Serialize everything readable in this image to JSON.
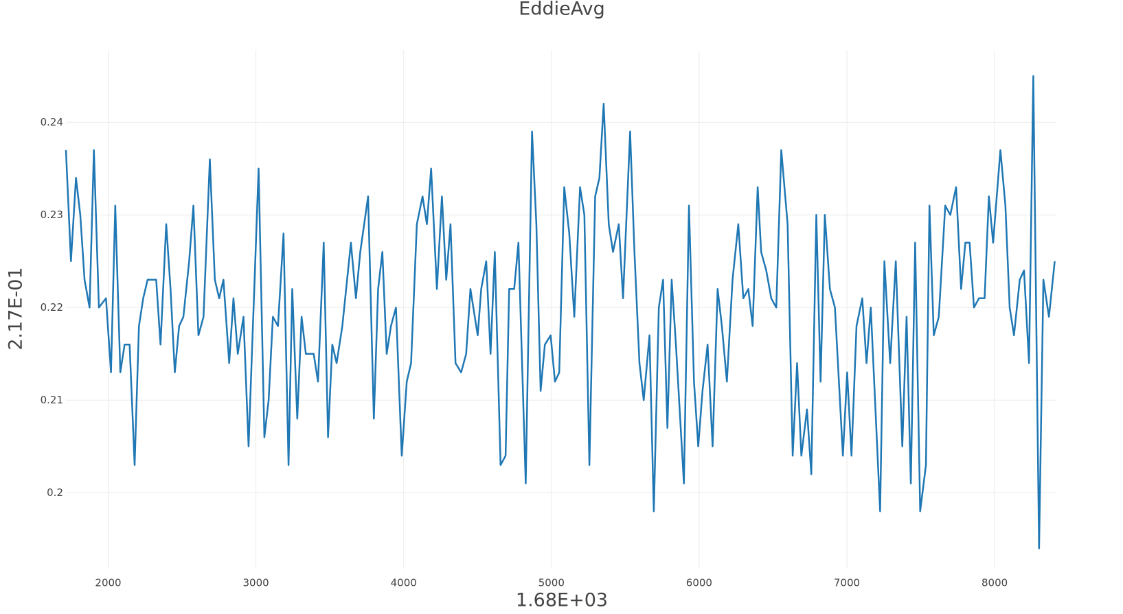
{
  "chart_data": {
    "type": "line",
    "title": "EddieAvg",
    "x_label": "1.68E+03",
    "y_label": "2.17E-01",
    "color": "#1f77b4",
    "grid": true,
    "xlim": [
      1714,
      8418
    ],
    "ylim": [
      0.1918,
      0.2478
    ],
    "xticks": [
      2000,
      3000,
      4000,
      5000,
      6000,
      7000,
      8000
    ],
    "yticks": [
      0.2,
      0.21,
      0.22,
      0.23,
      0.24
    ],
    "x": [
      1714,
      1748,
      1782,
      1811,
      1840,
      1874,
      1903,
      1937,
      1985,
      2019,
      2048,
      2082,
      2111,
      2145,
      2179,
      2208,
      2237,
      2267,
      2296,
      2325,
      2354,
      2393,
      2422,
      2451,
      2480,
      2509,
      2548,
      2577,
      2611,
      2645,
      2688,
      2722,
      2751,
      2780,
      2819,
      2848,
      2877,
      2916,
      2950,
      3018,
      3057,
      3086,
      3115,
      3149,
      3187,
      3221,
      3246,
      3280,
      3309,
      3338,
      3362,
      3391,
      3420,
      3459,
      3488,
      3517,
      3546,
      3585,
      3643,
      3677,
      3706,
      3759,
      3798,
      3827,
      3856,
      3885,
      3914,
      3948,
      3987,
      4021,
      4050,
      4089,
      4128,
      4157,
      4186,
      4225,
      4259,
      4288,
      4317,
      4351,
      4389,
      4423,
      4452,
      4501,
      4525,
      4559,
      4588,
      4617,
      4656,
      4690,
      4714,
      4748,
      4777,
      4826,
      4869,
      4898,
      4927,
      4956,
      4995,
      5024,
      5053,
      5087,
      5121,
      5155,
      5194,
      5223,
      5257,
      5296,
      5325,
      5354,
      5388,
      5417,
      5456,
      5485,
      5533,
      5562,
      5596,
      5625,
      5664,
      5693,
      5727,
      5756,
      5785,
      5814,
      5843,
      5897,
      5931,
      5965,
      5994,
      6023,
      6057,
      6091,
      6125,
      6154,
      6188,
      6226,
      6265,
      6299,
      6333,
      6362,
      6396,
      6420,
      6454,
      6488,
      6522,
      6556,
      6599,
      6633,
      6663,
      6692,
      6730,
      6759,
      6793,
      6822,
      6851,
      6885,
      6919,
      6973,
      7002,
      7031,
      7065,
      7104,
      7133,
      7162,
      7225,
      7254,
      7293,
      7331,
      7375,
      7404,
      7433,
      7462,
      7496,
      7535,
      7559,
      7588,
      7622,
      7666,
      7700,
      7739,
      7773,
      7802,
      7831,
      7860,
      7894,
      7932,
      7961,
      7990,
      8039,
      8073,
      8102,
      8131,
      8170,
      8199,
      8233,
      8262,
      8301,
      8330,
      8368,
      8407
    ],
    "values": [
      0.237,
      0.225,
      0.234,
      0.23,
      0.223,
      0.22,
      0.237,
      0.22,
      0.221,
      0.213,
      0.231,
      0.213,
      0.216,
      0.216,
      0.203,
      0.218,
      0.221,
      0.223,
      0.223,
      0.223,
      0.216,
      0.229,
      0.222,
      0.213,
      0.218,
      0.219,
      0.225,
      0.231,
      0.217,
      0.219,
      0.236,
      0.223,
      0.221,
      0.223,
      0.214,
      0.221,
      0.215,
      0.219,
      0.205,
      0.235,
      0.206,
      0.21,
      0.219,
      0.218,
      0.228,
      0.203,
      0.222,
      0.208,
      0.219,
      0.215,
      0.215,
      0.215,
      0.212,
      0.227,
      0.206,
      0.216,
      0.214,
      0.218,
      0.227,
      0.221,
      0.226,
      0.232,
      0.208,
      0.222,
      0.226,
      0.215,
      0.218,
      0.22,
      0.204,
      0.212,
      0.214,
      0.229,
      0.232,
      0.229,
      0.235,
      0.222,
      0.232,
      0.223,
      0.229,
      0.214,
      0.213,
      0.215,
      0.222,
      0.217,
      0.222,
      0.225,
      0.215,
      0.226,
      0.203,
      0.204,
      0.222,
      0.222,
      0.227,
      0.201,
      0.239,
      0.229,
      0.211,
      0.216,
      0.217,
      0.212,
      0.213,
      0.233,
      0.228,
      0.219,
      0.233,
      0.23,
      0.203,
      0.232,
      0.234,
      0.242,
      0.229,
      0.226,
      0.229,
      0.221,
      0.239,
      0.226,
      0.214,
      0.21,
      0.217,
      0.198,
      0.22,
      0.223,
      0.207,
      0.223,
      0.216,
      0.201,
      0.231,
      0.212,
      0.205,
      0.211,
      0.216,
      0.205,
      0.222,
      0.218,
      0.212,
      0.223,
      0.229,
      0.221,
      0.222,
      0.218,
      0.233,
      0.226,
      0.224,
      0.221,
      0.22,
      0.237,
      0.229,
      0.204,
      0.214,
      0.204,
      0.209,
      0.202,
      0.23,
      0.212,
      0.23,
      0.222,
      0.22,
      0.204,
      0.213,
      0.204,
      0.218,
      0.221,
      0.214,
      0.22,
      0.198,
      0.225,
      0.214,
      0.225,
      0.205,
      0.219,
      0.201,
      0.227,
      0.198,
      0.203,
      0.231,
      0.217,
      0.219,
      0.231,
      0.23,
      0.233,
      0.222,
      0.227,
      0.227,
      0.22,
      0.221,
      0.221,
      0.232,
      0.227,
      0.237,
      0.231,
      0.22,
      0.217,
      0.223,
      0.224,
      0.214,
      0.245,
      0.194,
      0.223,
      0.219,
      0.225
    ]
  }
}
